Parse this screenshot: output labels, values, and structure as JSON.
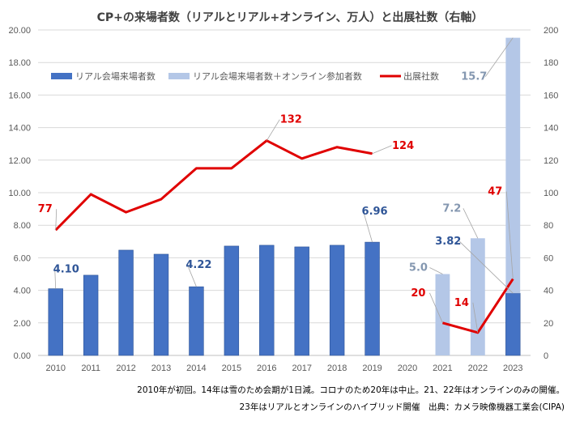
{
  "chart_data": {
    "type": "bar+line",
    "title": "CP+の来場者数（リアルとリアル+オンライン、万人）と出展社数（右軸）",
    "categories": [
      "2010",
      "2011",
      "2012",
      "2013",
      "2014",
      "2015",
      "2016",
      "2017",
      "2018",
      "2019",
      "2020",
      "2021",
      "2022",
      "2023"
    ],
    "series": [
      {
        "name": "リアル会場来場者数",
        "type": "bar",
        "axis": "left",
        "color": "#4472C4",
        "values": [
          4.1,
          4.93,
          6.47,
          6.22,
          4.22,
          6.72,
          6.77,
          6.67,
          6.77,
          6.96,
          null,
          null,
          null,
          3.82
        ]
      },
      {
        "name": "リアル会場来場者数＋オンライン参加者数",
        "type": "bar-stacked",
        "axis": "left",
        "color": "#B4C7E7",
        "values": [
          null,
          null,
          null,
          null,
          null,
          null,
          null,
          null,
          null,
          null,
          null,
          5.0,
          7.2,
          15.7
        ]
      },
      {
        "name": "出展社数",
        "type": "line",
        "axis": "right",
        "color": "#E00000",
        "values": [
          77,
          99,
          88,
          96,
          115,
          115,
          132,
          121,
          128,
          124,
          null,
          20,
          14,
          47
        ]
      }
    ],
    "data_labels": [
      {
        "series": 0,
        "index": 0,
        "text": "4.10"
      },
      {
        "series": 0,
        "index": 4,
        "text": "4.22"
      },
      {
        "series": 0,
        "index": 9,
        "text": "6.96"
      },
      {
        "series": 0,
        "index": 13,
        "text": "3.82"
      },
      {
        "series": 1,
        "index": 11,
        "text": "5.0"
      },
      {
        "series": 1,
        "index": 12,
        "text": "7.2"
      },
      {
        "series": 1,
        "index": 13,
        "text": "15.7"
      },
      {
        "series": 2,
        "index": 0,
        "text": "77"
      },
      {
        "series": 2,
        "index": 6,
        "text": "132"
      },
      {
        "series": 2,
        "index": 9,
        "text": "124"
      },
      {
        "series": 2,
        "index": 11,
        "text": "20"
      },
      {
        "series": 2,
        "index": 12,
        "text": "14"
      },
      {
        "series": 2,
        "index": 13,
        "text": "47"
      }
    ],
    "y_left": {
      "min": 0,
      "max": 20,
      "step": 2,
      "tick_labels": [
        "0.00",
        "2.00",
        "4.00",
        "6.00",
        "8.00",
        "10.00",
        "12.00",
        "14.00",
        "16.00",
        "18.00",
        "20.00"
      ]
    },
    "y_right": {
      "min": 0,
      "max": 200,
      "step": 20,
      "tick_labels": [
        "0",
        "20",
        "40",
        "60",
        "80",
        "100",
        "120",
        "140",
        "160",
        "180",
        "200"
      ]
    },
    "grid": true,
    "legend_position": "top-left",
    "notes": [
      "2010年が初回。14年は雪のため会期が1日減。コロナのため20年は中止。21、22年はオンラインのみの開催。",
      "23年はリアルとオンラインのハイブリッド開催　出典：カメラ映像機器工業会(CIPA)"
    ]
  }
}
